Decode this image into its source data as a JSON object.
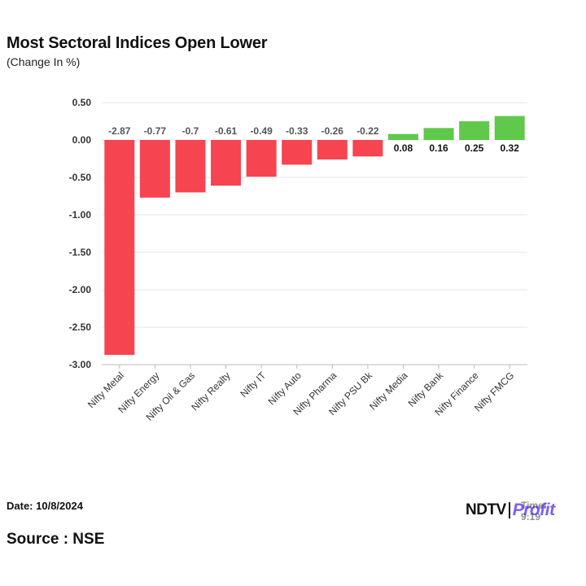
{
  "title": "Most Sectoral Indices Open Lower",
  "subtitle": "(Change In %)",
  "footer": {
    "date": "Date: 10/8/2024",
    "source": "Source : NSE",
    "time_fragment": "Time: 9:19"
  },
  "logo": {
    "brand": "NDTV",
    "sub": "Profit"
  },
  "colors": {
    "negative": "#f64450",
    "positive": "#60c84a",
    "grid": "#e4e4e4",
    "axis": "#bbbbbb"
  },
  "chart_data": {
    "type": "bar",
    "categories": [
      "Nifty Metal",
      "Nifty Energy",
      "Nifty Oil & Gas",
      "Nifty Realty",
      "Nifty IT",
      "Nifty Auto",
      "Nifty Pharma",
      "Nifty PSU Bk",
      "Nifty Media",
      "Nifty Bank",
      "Nifty Finance",
      "Nifty FMCG"
    ],
    "values": [
      -2.87,
      -0.77,
      -0.7,
      -0.61,
      -0.49,
      -0.33,
      -0.26,
      -0.22,
      0.08,
      0.16,
      0.25,
      0.32
    ],
    "data_labels": [
      "-2.87",
      "-0.77",
      "-0.7",
      "-0.61",
      "-0.49",
      "-0.33",
      "-0.26",
      "-0.22",
      "0.08",
      "0.16",
      "0.25",
      "0.32"
    ],
    "yticks": [
      "0.50",
      "0.00",
      "-0.50",
      "-1.00",
      "-1.50",
      "-2.00",
      "-2.50",
      "-3.00"
    ],
    "ytick_values": [
      0.5,
      0,
      -0.5,
      -1,
      -1.5,
      -2,
      -2.5,
      -3
    ],
    "ylim": [
      -3.0,
      0.5
    ],
    "grid": true,
    "legend": "none"
  }
}
